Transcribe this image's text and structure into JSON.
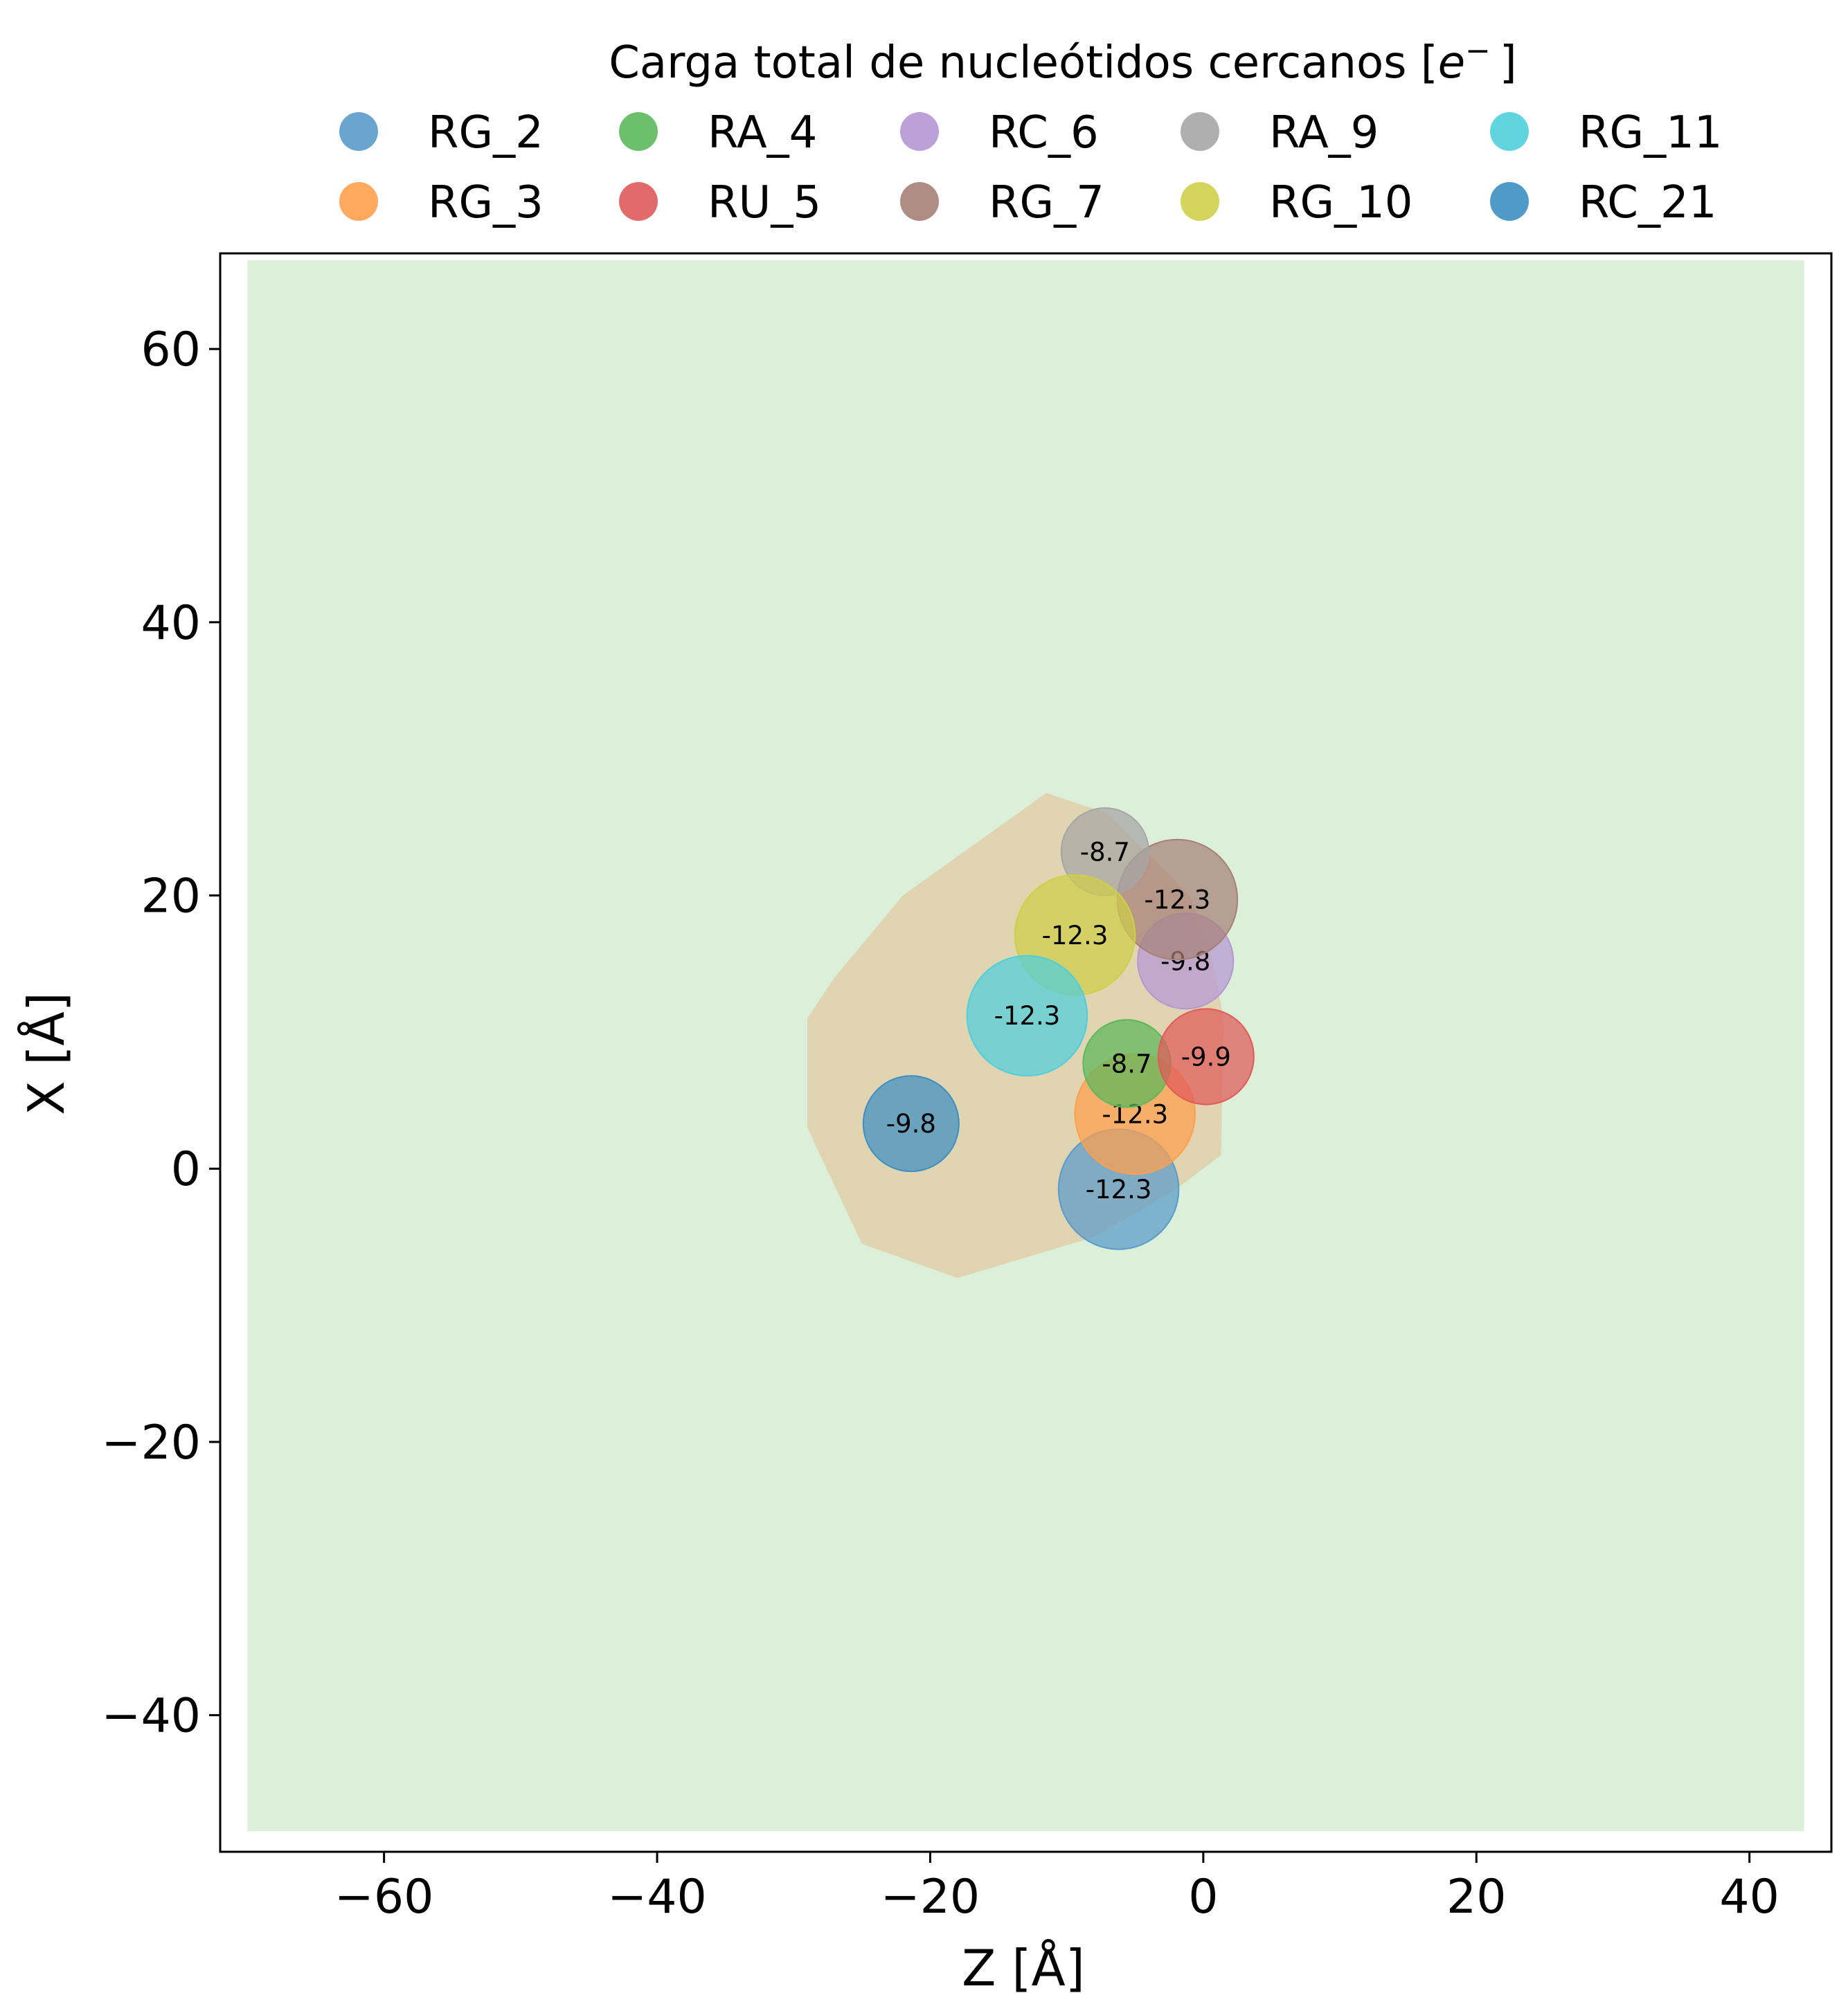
{
  "chart_data": {
    "type": "scatter",
    "title": "",
    "xlabel": "Z [Å]",
    "ylabel": "X [Å]",
    "xlim": [
      -72,
      46
    ],
    "ylim": [
      -50,
      67
    ],
    "x_ticks": [
      -60,
      -40,
      -20,
      0,
      20,
      40
    ],
    "y_ticks": [
      -40,
      -20,
      0,
      20,
      40,
      60
    ],
    "x_tick_labels": [
      "−60",
      "−40",
      "−20",
      "0",
      "20",
      "40"
    ],
    "y_tick_labels": [
      "−40",
      "−20",
      "0",
      "20",
      "40",
      "60"
    ],
    "grid": false,
    "background_region": {
      "color": "#dcefd8",
      "z": [
        -70,
        44
      ],
      "x": [
        -48.5,
        66.5
      ]
    },
    "surface_region": {
      "color": "#e0cfaa",
      "polygon": [
        [
          -11.5,
          27.5
        ],
        [
          -7,
          26
        ],
        [
          -1,
          20
        ],
        [
          0.5,
          16
        ],
        [
          1.5,
          11
        ],
        [
          1.3,
          1
        ],
        [
          -2,
          -1.5
        ],
        [
          -8,
          -5
        ],
        [
          -18,
          -8
        ],
        [
          -25,
          -5.5
        ],
        [
          -29,
          3
        ],
        [
          -29,
          11
        ],
        [
          -27,
          14
        ],
        [
          -22,
          20
        ]
      ]
    },
    "legend": {
      "title": "Carga total de nucleótidos cercanos [",
      "title_unit_symbol": "e",
      "title_unit_sup": "−",
      "title_end": "]",
      "placement": "top-center",
      "columns": 5
    },
    "series": [
      {
        "name": "RG_2",
        "color": "#5a9bcb",
        "z": -6.2,
        "x": -1.5,
        "radius": 4.4,
        "label": "-12.3"
      },
      {
        "name": "RG_3",
        "color": "#ffa04e",
        "z": -5,
        "x": 4,
        "radius": 4.4,
        "label": "-12.3"
      },
      {
        "name": "RA_4",
        "color": "#5cb85c",
        "z": -5.6,
        "x": 7.7,
        "radius": 3.2,
        "label": "-8.7"
      },
      {
        "name": "RU_5",
        "color": "#e05a5a",
        "z": 0.2,
        "x": 8.2,
        "radius": 3.5,
        "label": "-9.9"
      },
      {
        "name": "RC_6",
        "color": "#b597d4",
        "z": -1.3,
        "x": 15.2,
        "radius": 3.5,
        "label": "-9.8"
      },
      {
        "name": "RG_7",
        "color": "#a68178",
        "z": -1.9,
        "x": 19.7,
        "radius": 4.4,
        "label": "-12.3"
      },
      {
        "name": "RA_9",
        "color": "#a6a6a6",
        "z": -7.2,
        "x": 23.2,
        "radius": 3.2,
        "label": "-8.7"
      },
      {
        "name": "RG_10",
        "color": "#cfcf4a",
        "z": -9.4,
        "x": 17.1,
        "radius": 4.4,
        "label": "-12.3"
      },
      {
        "name": "RG_11",
        "color": "#4fcfdc",
        "z": -12.9,
        "x": 11.2,
        "radius": 4.4,
        "label": "-12.3"
      },
      {
        "name": "RC_21",
        "color": "#3d8fc2",
        "z": -21.4,
        "x": 3.3,
        "radius": 3.5,
        "label": "-9.8"
      }
    ]
  }
}
